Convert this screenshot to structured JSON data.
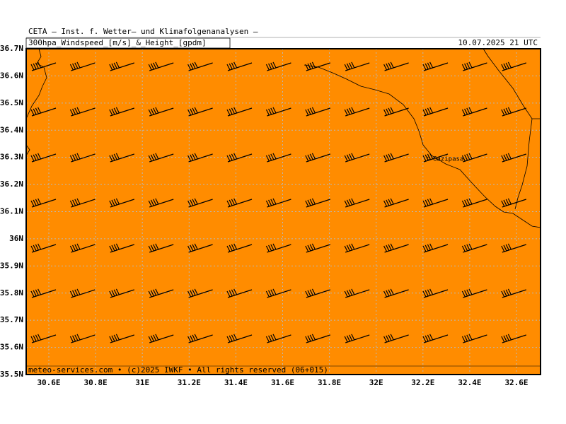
{
  "header": {
    "title": "CETA — Inst. f. Wetter— und Klimafolgenanalysen —",
    "subtitle": "300hpa_Windspeed_[m/s]_&_Height_[gpdm]",
    "datetime": "10.07.2025 21 UTC"
  },
  "axes": {
    "lat_labels": [
      "36.7N",
      "36.6N",
      "36.5N",
      "36.4N",
      "36.3N",
      "36.2N",
      "36.1N",
      "36N",
      "35.9N",
      "35.8N",
      "35.7N",
      "35.6N",
      "35.5N"
    ],
    "lon_labels": [
      "30.6E",
      "30.8E",
      "31E",
      "31.2E",
      "31.4E",
      "31.6E",
      "31.8E",
      "32E",
      "32.2E",
      "32.4E",
      "32.6E"
    ]
  },
  "places": [
    {
      "label": "Gazipasa"
    }
  ],
  "footer": "meteo-services.com • (c)2025 IWKF • All rights reserved (06+015)"
}
